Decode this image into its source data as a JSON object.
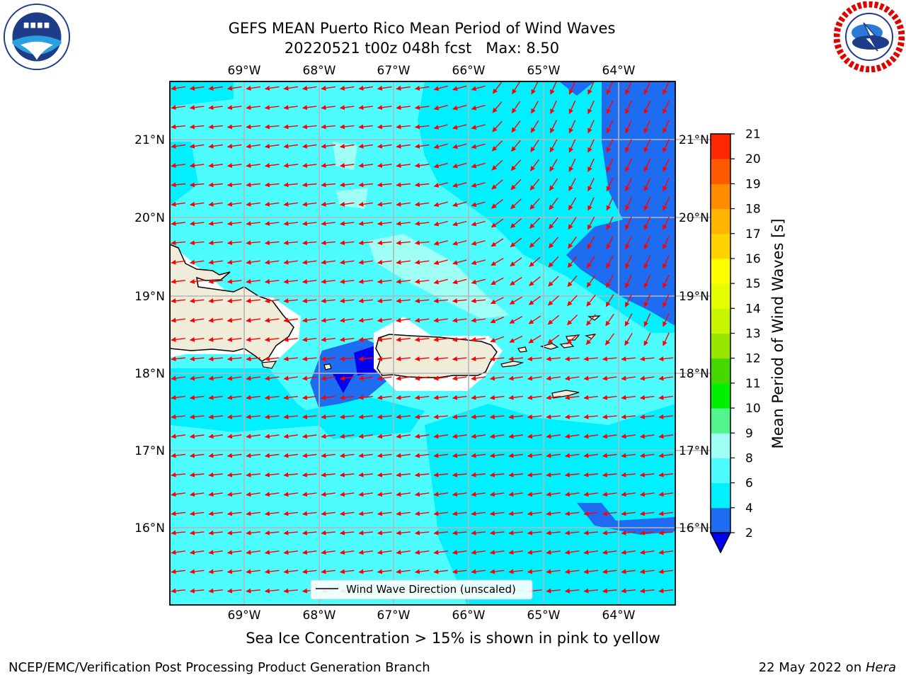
{
  "title": {
    "line1": "GEFS MEAN Puerto Rico Mean Period of Wind Waves",
    "line2": "20220521 t00z 048h fcst   Max: 8.50"
  },
  "map": {
    "lon_ticks": [
      "69°W",
      "68°W",
      "67°W",
      "66°W",
      "65°W",
      "64°W"
    ],
    "lat_ticks": [
      "21°N",
      "20°N",
      "19°N",
      "18°N",
      "17°N",
      "16°N"
    ],
    "legend_label": "Wind Wave Direction (unscaled)",
    "colors": {
      "land": "#efedd9",
      "coast": "#000000",
      "grid": "#b5b5b5",
      "arrow": "#ff0000"
    }
  },
  "colorbar": {
    "label": "Mean Period of Wind Waves [s]",
    "tick_labels": [
      "2",
      "4",
      "6",
      "8",
      "9",
      "10",
      "11",
      "12",
      "13",
      "14",
      "15",
      "16",
      "17",
      "18",
      "19",
      "20",
      "21"
    ],
    "colors": [
      "#1e6cf0",
      "#00f0ff",
      "#4dfcff",
      "#a0fff5",
      "#52f58c",
      "#00f000",
      "#45d900",
      "#96e600",
      "#c8f500",
      "#e6ff00",
      "#ffff00",
      "#ffd200",
      "#ffb400",
      "#ff8c00",
      "#ff5a00",
      "#ff2800"
    ],
    "under_color": "#0000f0",
    "over_color": "#ff0000"
  },
  "note": "Sea Ice Concentration > 15% is shown in pink to yellow",
  "footer": {
    "left": "NCEP/EMC/Verification Post Processing Product Generation Branch",
    "right_date": "22 May 2022 on ",
    "right_host": "Hera"
  }
}
